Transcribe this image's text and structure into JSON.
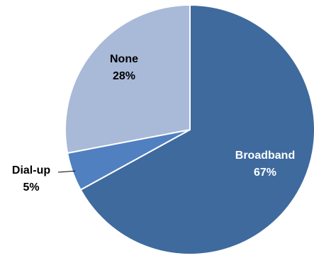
{
  "chart_data": {
    "type": "pie",
    "start_angle_deg": 0,
    "direction": "clockwise",
    "slices": [
      {
        "label": "Broadband",
        "value": 67,
        "value_label": "67%",
        "color": "#3E6A9E",
        "label_color": "#ffffff"
      },
      {
        "label": "Dial-up",
        "value": 5,
        "value_label": "5%",
        "color": "#5080C0",
        "label_color": "#000000"
      },
      {
        "label": "None",
        "value": 28,
        "value_label": "28%",
        "color": "#A9B9D8",
        "label_color": "#000000"
      }
    ],
    "title": "",
    "legend": "none"
  }
}
